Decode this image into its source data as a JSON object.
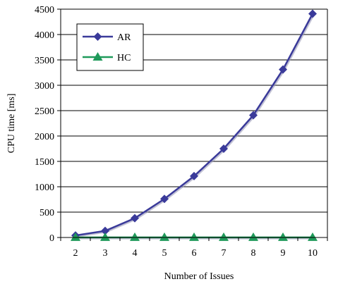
{
  "chart_data": {
    "type": "line",
    "xlabel": "Number of Issues",
    "ylabel": "CPU time [ms]",
    "x": [
      2,
      3,
      4,
      5,
      6,
      7,
      8,
      9,
      10
    ],
    "xticks": [
      "2",
      "3",
      "4",
      "5",
      "6",
      "7",
      "8",
      "9",
      "10"
    ],
    "yticks": [
      "0",
      "500",
      "1000",
      "1500",
      "2000",
      "2500",
      "3000",
      "3500",
      "4000",
      "4500"
    ],
    "ylim": [
      0,
      4500
    ],
    "grid": "horizontal",
    "legend_position": "top-left",
    "series": [
      {
        "name": "AR",
        "marker": "diamond",
        "color": "#3a3a9a",
        "values": [
          40,
          130,
          380,
          760,
          1210,
          1750,
          2410,
          3310,
          4410
        ]
      },
      {
        "name": "HC",
        "marker": "triangle",
        "color": "#1f9a5a",
        "values": [
          2,
          2,
          2,
          2,
          2,
          2,
          2,
          2,
          2
        ]
      }
    ]
  }
}
